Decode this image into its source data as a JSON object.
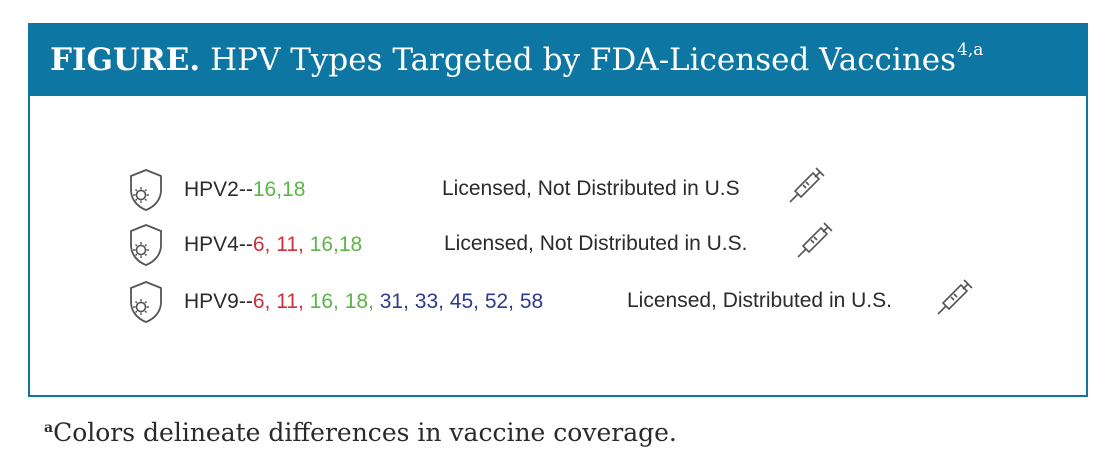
{
  "figure": {
    "label": "FIGURE.",
    "title": "HPV Types Targeted by FDA-Licensed Vaccines",
    "title_superscript": "4,a"
  },
  "vaccines": [
    {
      "name": "HPV2--",
      "types": [
        {
          "text": "16,18",
          "color": "green"
        }
      ],
      "status": "Licensed, Not Distributed in U.S"
    },
    {
      "name": "HPV4--",
      "types": [
        {
          "text": "6, 11,",
          "color": "red"
        },
        {
          "text": " 16,18",
          "color": "green"
        }
      ],
      "status": "Licensed, Not Distributed in U.S."
    },
    {
      "name": "HPV9--",
      "types": [
        {
          "text": "6, 11,",
          "color": "red"
        },
        {
          "text": " 16, 18,",
          "color": "green"
        },
        {
          "text": " 31, 33, 45, 52, 58",
          "color": "blue"
        }
      ],
      "status": "Licensed, Distributed in U.S."
    }
  ],
  "icons": {
    "shield": "shield-virus-icon",
    "syringe": "syringe-icon"
  },
  "colors": {
    "header_bg": "#0e76a3",
    "red": "#c8323b",
    "green": "#5bb548",
    "blue": "#2e3a8c"
  },
  "footnote": {
    "marker": "a",
    "text": "Colors delineate differences in vaccine coverage."
  }
}
